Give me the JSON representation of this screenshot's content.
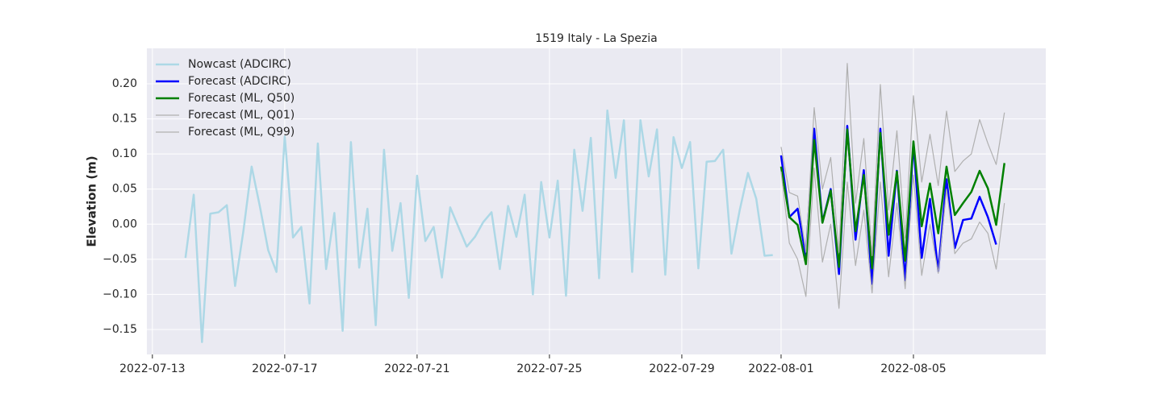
{
  "chart_data": {
    "type": "line",
    "title": "1519 Italy - La Spezia",
    "ylabel": "Elevation (m)",
    "x": [
      "2022-07-14 00:00",
      "2022-07-14 06:00",
      "2022-07-14 12:00",
      "2022-07-14 18:00",
      "2022-07-15 00:00",
      "2022-07-15 06:00",
      "2022-07-15 12:00",
      "2022-07-15 18:00",
      "2022-07-16 00:00",
      "2022-07-16 06:00",
      "2022-07-16 12:00",
      "2022-07-16 18:00",
      "2022-07-17 00:00",
      "2022-07-17 06:00",
      "2022-07-17 12:00",
      "2022-07-17 18:00",
      "2022-07-18 00:00",
      "2022-07-18 06:00",
      "2022-07-18 12:00",
      "2022-07-18 18:00",
      "2022-07-19 00:00",
      "2022-07-19 06:00",
      "2022-07-19 12:00",
      "2022-07-19 18:00",
      "2022-07-20 00:00",
      "2022-07-20 06:00",
      "2022-07-20 12:00",
      "2022-07-20 18:00",
      "2022-07-21 00:00",
      "2022-07-21 06:00",
      "2022-07-21 12:00",
      "2022-07-21 18:00",
      "2022-07-22 00:00",
      "2022-07-22 06:00",
      "2022-07-22 12:00",
      "2022-07-22 18:00",
      "2022-07-23 00:00",
      "2022-07-23 06:00",
      "2022-07-23 12:00",
      "2022-07-23 18:00",
      "2022-07-24 00:00",
      "2022-07-24 06:00",
      "2022-07-24 12:00",
      "2022-07-24 18:00",
      "2022-07-25 00:00",
      "2022-07-25 06:00",
      "2022-07-25 12:00",
      "2022-07-25 18:00",
      "2022-07-26 00:00",
      "2022-07-26 06:00",
      "2022-07-26 12:00",
      "2022-07-26 18:00",
      "2022-07-27 00:00",
      "2022-07-27 06:00",
      "2022-07-27 12:00",
      "2022-07-27 18:00",
      "2022-07-28 00:00",
      "2022-07-28 06:00",
      "2022-07-28 12:00",
      "2022-07-28 18:00",
      "2022-07-29 00:00",
      "2022-07-29 06:00",
      "2022-07-29 12:00",
      "2022-07-29 18:00",
      "2022-07-30 00:00",
      "2022-07-30 06:00",
      "2022-07-30 12:00",
      "2022-07-30 18:00",
      "2022-07-31 00:00",
      "2022-07-31 06:00",
      "2022-07-31 12:00",
      "2022-07-31 18:00",
      "2022-08-01 00:00",
      "2022-08-01 06:00",
      "2022-08-01 12:00",
      "2022-08-01 18:00",
      "2022-08-02 00:00",
      "2022-08-02 06:00",
      "2022-08-02 12:00",
      "2022-08-02 18:00",
      "2022-08-03 00:00",
      "2022-08-03 06:00",
      "2022-08-03 12:00",
      "2022-08-03 18:00",
      "2022-08-04 00:00",
      "2022-08-04 06:00",
      "2022-08-04 12:00",
      "2022-08-04 18:00",
      "2022-08-05 00:00",
      "2022-08-05 06:00",
      "2022-08-05 12:00",
      "2022-08-05 18:00",
      "2022-08-06 00:00",
      "2022-08-06 06:00",
      "2022-08-06 12:00",
      "2022-08-06 18:00",
      "2022-08-07 00:00",
      "2022-08-07 06:00",
      "2022-08-07 12:00",
      "2022-08-07 18:00"
    ],
    "series": [
      {
        "name": "Nowcast (ADCIRC)",
        "color": "#add8e6",
        "linewidth": 2.5,
        "values": [
          -0.048,
          0.042,
          -0.168,
          0.015,
          0.017,
          0.027,
          -0.088,
          -0.01,
          0.082,
          0.025,
          -0.037,
          -0.068,
          0.125,
          -0.019,
          -0.004,
          -0.113,
          0.115,
          -0.064,
          0.016,
          -0.152,
          0.117,
          -0.062,
          0.022,
          -0.144,
          0.106,
          -0.038,
          0.03,
          -0.105,
          0.069,
          -0.024,
          -0.004,
          -0.076,
          0.024,
          -0.004,
          -0.032,
          -0.018,
          0.003,
          0.017,
          -0.064,
          0.026,
          -0.018,
          0.042,
          -0.1,
          0.06,
          -0.019,
          0.062,
          -0.102,
          0.106,
          0.019,
          0.123,
          -0.077,
          0.162,
          0.066,
          0.148,
          -0.068,
          0.148,
          0.068,
          0.135,
          -0.072,
          0.124,
          0.08,
          0.117,
          -0.063,
          0.089,
          0.09,
          0.106,
          -0.042,
          0.02,
          0.073,
          0.036,
          -0.045,
          -0.044,
          null,
          null,
          null,
          null,
          null,
          null,
          null,
          null,
          null,
          null,
          null,
          null,
          null,
          null,
          null,
          null,
          null,
          null,
          null,
          null,
          null,
          null,
          null,
          null,
          null,
          null,
          null,
          null
        ]
      },
      {
        "name": "Forecast (ADCIRC)",
        "color": "#0000ff",
        "linewidth": 2.5,
        "values": [
          null,
          null,
          null,
          null,
          null,
          null,
          null,
          null,
          null,
          null,
          null,
          null,
          null,
          null,
          null,
          null,
          null,
          null,
          null,
          null,
          null,
          null,
          null,
          null,
          null,
          null,
          null,
          null,
          null,
          null,
          null,
          null,
          null,
          null,
          null,
          null,
          null,
          null,
          null,
          null,
          null,
          null,
          null,
          null,
          null,
          null,
          null,
          null,
          null,
          null,
          null,
          null,
          null,
          null,
          null,
          null,
          null,
          null,
          null,
          null,
          null,
          null,
          null,
          null,
          null,
          null,
          null,
          null,
          null,
          null,
          null,
          null,
          0.098,
          0.01,
          0.022,
          -0.045,
          0.136,
          0.003,
          0.05,
          -0.071,
          0.14,
          -0.022,
          0.077,
          -0.085,
          0.136,
          -0.045,
          0.076,
          -0.08,
          0.115,
          -0.048,
          0.036,
          -0.067,
          0.064,
          -0.034,
          0.006,
          0.008,
          0.039,
          0.01,
          -0.029,
          null
        ]
      },
      {
        "name": "Forecast (ML, Q50)",
        "color": "#008000",
        "linewidth": 2.5,
        "values": [
          null,
          null,
          null,
          null,
          null,
          null,
          null,
          null,
          null,
          null,
          null,
          null,
          null,
          null,
          null,
          null,
          null,
          null,
          null,
          null,
          null,
          null,
          null,
          null,
          null,
          null,
          null,
          null,
          null,
          null,
          null,
          null,
          null,
          null,
          null,
          null,
          null,
          null,
          null,
          null,
          null,
          null,
          null,
          null,
          null,
          null,
          null,
          null,
          null,
          null,
          null,
          null,
          null,
          null,
          null,
          null,
          null,
          null,
          null,
          null,
          null,
          null,
          null,
          null,
          null,
          null,
          null,
          null,
          null,
          null,
          null,
          null,
          0.082,
          0.01,
          -0.001,
          -0.057,
          0.12,
          0.002,
          0.048,
          -0.061,
          0.135,
          -0.01,
          0.07,
          -0.063,
          0.13,
          -0.015,
          0.075,
          -0.052,
          0.118,
          -0.003,
          0.058,
          -0.013,
          0.082,
          0.013,
          0.03,
          0.046,
          0.076,
          0.051,
          -0.001,
          0.087
        ]
      },
      {
        "name": "Forecast (ML, Q01)",
        "color": "#b0b0b0",
        "linewidth": 1.2,
        "values": [
          null,
          null,
          null,
          null,
          null,
          null,
          null,
          null,
          null,
          null,
          null,
          null,
          null,
          null,
          null,
          null,
          null,
          null,
          null,
          null,
          null,
          null,
          null,
          null,
          null,
          null,
          null,
          null,
          null,
          null,
          null,
          null,
          null,
          null,
          null,
          null,
          null,
          null,
          null,
          null,
          null,
          null,
          null,
          null,
          null,
          null,
          null,
          null,
          null,
          null,
          null,
          null,
          null,
          null,
          null,
          null,
          null,
          null,
          null,
          null,
          null,
          null,
          null,
          null,
          null,
          null,
          null,
          null,
          null,
          null,
          null,
          null,
          0.075,
          -0.027,
          -0.05,
          -0.103,
          0.08,
          -0.054,
          0.0,
          -0.12,
          0.06,
          -0.059,
          0.02,
          -0.098,
          0.06,
          -0.075,
          0.03,
          -0.092,
          0.07,
          -0.073,
          0.0,
          -0.07,
          0.05,
          -0.042,
          -0.027,
          -0.021,
          0.003,
          -0.013,
          -0.064,
          0.03
        ]
      },
      {
        "name": "Forecast (ML, Q99)",
        "color": "#b0b0b0",
        "linewidth": 1.2,
        "values": [
          null,
          null,
          null,
          null,
          null,
          null,
          null,
          null,
          null,
          null,
          null,
          null,
          null,
          null,
          null,
          null,
          null,
          null,
          null,
          null,
          null,
          null,
          null,
          null,
          null,
          null,
          null,
          null,
          null,
          null,
          null,
          null,
          null,
          null,
          null,
          null,
          null,
          null,
          null,
          null,
          null,
          null,
          null,
          null,
          null,
          null,
          null,
          null,
          null,
          null,
          null,
          null,
          null,
          null,
          null,
          null,
          null,
          null,
          null,
          null,
          null,
          null,
          null,
          null,
          null,
          null,
          null,
          null,
          null,
          null,
          null,
          null,
          0.11,
          0.045,
          0.04,
          -0.04,
          0.166,
          0.05,
          0.095,
          -0.04,
          0.229,
          0.03,
          0.122,
          -0.045,
          0.199,
          0.02,
          0.133,
          -0.02,
          0.183,
          0.06,
          0.128,
          0.055,
          0.161,
          0.075,
          0.09,
          0.1,
          0.149,
          0.115,
          0.085,
          0.159
        ]
      }
    ],
    "xlim": [
      "2022-07-12 20:00",
      "2022-08-09 00:00"
    ],
    "xticks": [
      "2022-07-13",
      "2022-07-17",
      "2022-07-21",
      "2022-07-25",
      "2022-07-29",
      "2022-08-01",
      "2022-08-05"
    ],
    "ylim": [
      -0.1856,
      0.2505
    ],
    "yticks": [
      {
        "value": -0.15,
        "label": "−0.15"
      },
      {
        "value": -0.1,
        "label": "−0.10"
      },
      {
        "value": -0.05,
        "label": "−0.05"
      },
      {
        "value": 0,
        "label": "0.00"
      },
      0.05,
      {
        "value": 0.1,
        "label": "0.10"
      },
      0.15,
      {
        "value": 0.2,
        "label": "0.20"
      }
    ],
    "grid": true,
    "legend": "upper left"
  }
}
